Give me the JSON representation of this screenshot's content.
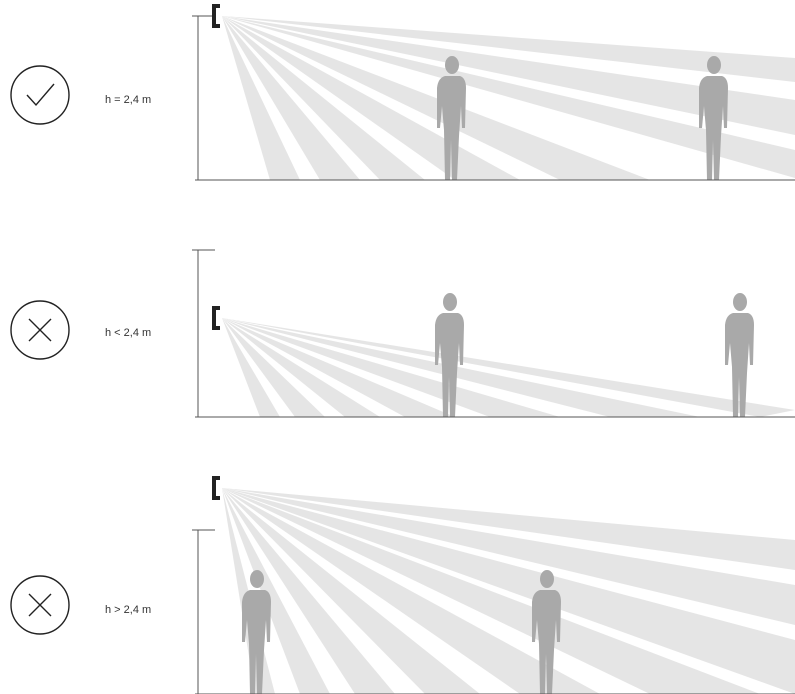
{
  "panels": [
    {
      "label": "h = 2,4 m"
    },
    {
      "label": "h < 2,4 m"
    },
    {
      "label": "h > 2,4 m"
    }
  ]
}
